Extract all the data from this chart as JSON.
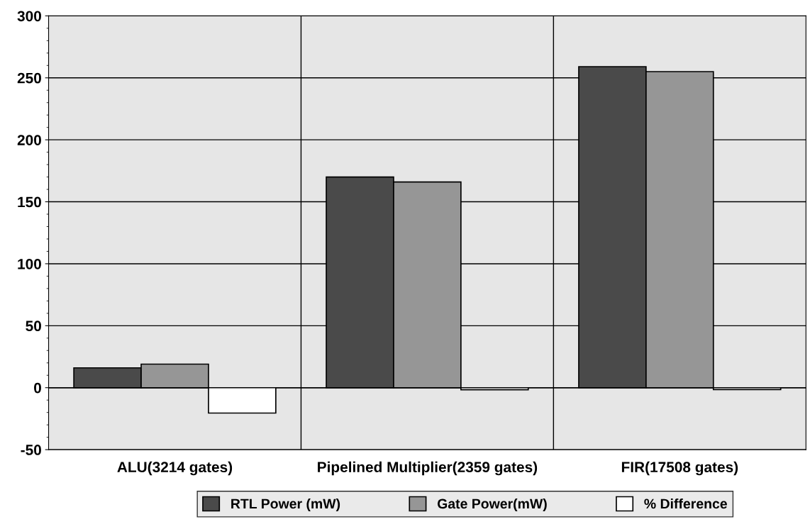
{
  "chart_data": {
    "type": "bar",
    "categories": [
      "ALU(3214 gates)",
      "Pipelined Multiplier(2359 gates)",
      "FIR(17508 gates)"
    ],
    "series": [
      {
        "name": "RTL Power (mW)",
        "color": "#4a4a4a",
        "values": [
          16,
          170,
          259
        ]
      },
      {
        "name": "Gate Power(mW)",
        "color": "#969696",
        "values": [
          19,
          166,
          255
        ]
      },
      {
        "name": "% Difference",
        "color": "#ffffff",
        "values": [
          -20.5,
          -1.7,
          -1.5
        ]
      }
    ],
    "ylim": [
      -50,
      300
    ],
    "yticks": [
      -50,
      0,
      50,
      100,
      150,
      200,
      250,
      300
    ],
    "grid": "y",
    "legend": "bottom"
  }
}
